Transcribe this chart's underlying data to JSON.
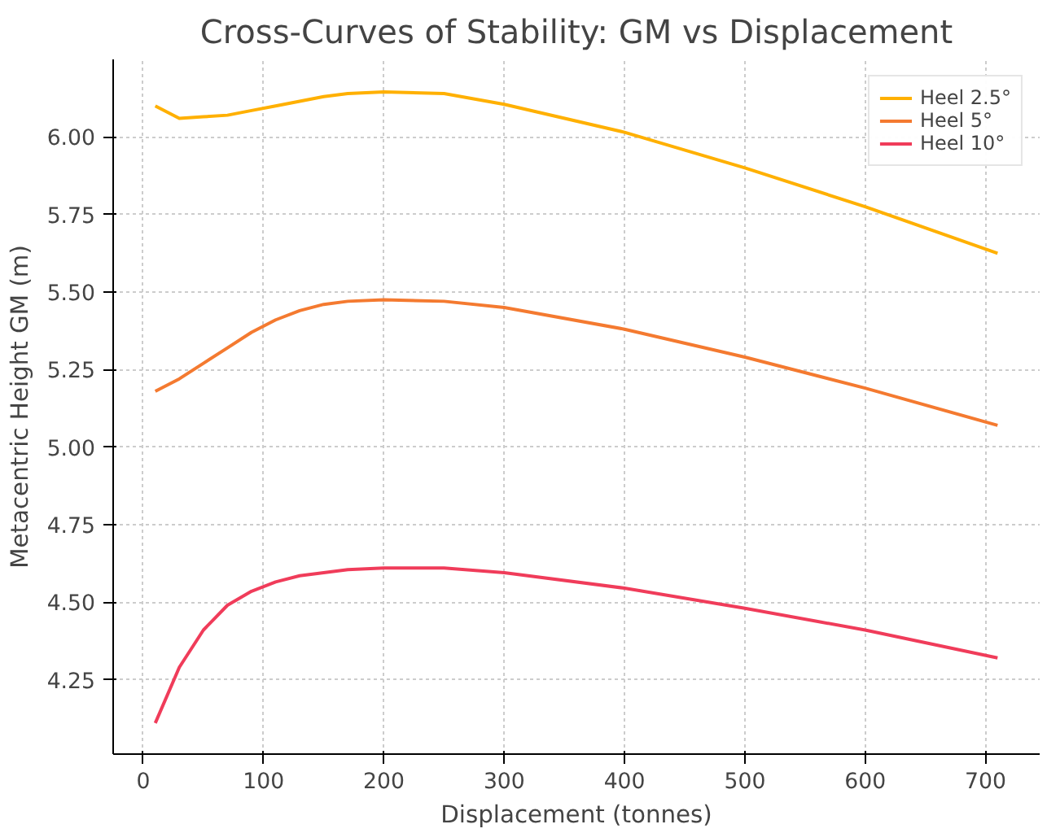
{
  "chart_data": {
    "type": "line",
    "title": "Cross-Curves of Stability: GM vs Displacement",
    "xlabel": "Displacement (tonnes)",
    "ylabel": "Metacentric Height GM (m)",
    "x": [
      10,
      30,
      50,
      70,
      90,
      110,
      130,
      150,
      170,
      200,
      250,
      300,
      400,
      500,
      600,
      710
    ],
    "series": [
      {
        "name": "Heel 2.5°",
        "color": "#ffb000",
        "values": [
          6.1,
          6.06,
          6.065,
          6.07,
          6.085,
          6.1,
          6.115,
          6.13,
          6.14,
          6.145,
          6.14,
          6.105,
          6.015,
          5.9,
          5.775,
          5.625
        ]
      },
      {
        "name": "Heel 5°",
        "color": "#f47a30",
        "values": [
          5.18,
          5.22,
          5.27,
          5.32,
          5.37,
          5.41,
          5.44,
          5.46,
          5.47,
          5.475,
          5.47,
          5.45,
          5.38,
          5.29,
          5.19,
          5.07
        ]
      },
      {
        "name": "Heel 10°",
        "color": "#f03c5a",
        "values": [
          4.11,
          4.29,
          4.41,
          4.49,
          4.535,
          4.565,
          4.585,
          4.595,
          4.605,
          4.61,
          4.61,
          4.595,
          4.545,
          4.48,
          4.41,
          4.32
        ]
      }
    ],
    "xlim": [
      -25,
      745
    ],
    "ylim": [
      4.01,
      6.25
    ],
    "xticks": [
      0,
      100,
      200,
      300,
      400,
      500,
      600,
      700
    ],
    "yticks": [
      {
        "value": 4.25,
        "label": "4.25"
      },
      {
        "value": 4.5,
        "label": "4.50"
      },
      {
        "value": 4.75,
        "label": "4.75"
      },
      {
        "value": 5.0,
        "label": "5.00"
      },
      {
        "value": 5.25,
        "label": "5.25"
      },
      {
        "value": 5.5,
        "label": "5.50"
      },
      {
        "value": 5.75,
        "label": "5.75"
      },
      {
        "value": 6.0,
        "label": "6.00"
      }
    ],
    "grid": true,
    "legend": "top right",
    "line_style": "solid",
    "marker": "none"
  }
}
